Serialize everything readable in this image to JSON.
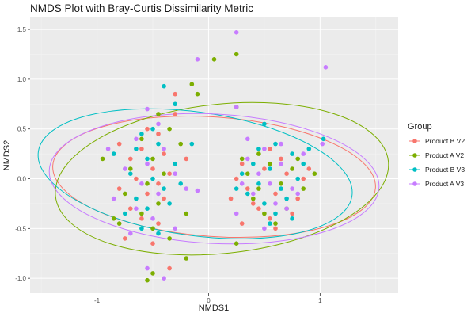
{
  "chart_data": {
    "type": "scatter",
    "title": "NMDS Plot with Bray-Curtis Dissimilarity Metric",
    "xlabel": "NMDS1",
    "ylabel": "NMDS2",
    "xlim": [
      -1.6,
      1.7
    ],
    "ylim": [
      -1.15,
      1.62
    ],
    "x_ticks": [
      -1,
      0,
      1
    ],
    "x_tick_labels": [
      "-1",
      "0",
      "1"
    ],
    "y_ticks": [
      -1.0,
      -0.5,
      0.0,
      0.5,
      1.0,
      1.5
    ],
    "y_tick_labels": [
      "-1.0",
      "-0.5",
      "0.0",
      "0.5",
      "1.0",
      "1.5"
    ],
    "grid": true,
    "legend": {
      "title": "Group",
      "position": "right"
    },
    "series": [
      {
        "name": "Product B V2",
        "color": "#F8766D",
        "ellipse": {
          "cx": 0.05,
          "cy": 0.02,
          "rx": 1.45,
          "ry": 0.6,
          "angle": -4
        },
        "points": [
          [
            -0.3,
            0.85
          ],
          [
            -0.55,
            0.5
          ],
          [
            -0.45,
            0.45
          ],
          [
            -0.8,
            0.35
          ],
          [
            -0.6,
            0.3
          ],
          [
            -0.4,
            0.25
          ],
          [
            -0.7,
            0.2
          ],
          [
            -0.5,
            0.1
          ],
          [
            -0.35,
            0.05
          ],
          [
            -0.65,
            0.0
          ],
          [
            -0.45,
            -0.05
          ],
          [
            -0.8,
            -0.1
          ],
          [
            -0.55,
            -0.15
          ],
          [
            -0.4,
            -0.2
          ],
          [
            -0.7,
            -0.3
          ],
          [
            -0.6,
            -0.4
          ],
          [
            -0.45,
            -0.45
          ],
          [
            -0.75,
            -0.6
          ],
          [
            -0.5,
            -0.65
          ],
          [
            -0.35,
            -0.9
          ],
          [
            -0.3,
            0.65
          ],
          [
            -0.2,
            0.2
          ],
          [
            0.25,
            0.0
          ],
          [
            0.35,
            -0.1
          ],
          [
            0.5,
            0.1
          ],
          [
            0.6,
            -0.15
          ],
          [
            0.7,
            0.05
          ],
          [
            0.8,
            -0.2
          ],
          [
            0.45,
            -0.3
          ],
          [
            0.55,
            -0.4
          ],
          [
            0.3,
            0.15
          ],
          [
            0.65,
            0.2
          ],
          [
            0.4,
            -0.25
          ],
          [
            0.75,
            -0.35
          ],
          [
            0.9,
            0.1
          ],
          [
            0.2,
            -0.2
          ],
          [
            0.55,
            0.3
          ],
          [
            0.85,
            0.0
          ],
          [
            0.3,
            -0.45
          ],
          [
            0.6,
            -0.5
          ]
        ]
      },
      {
        "name": "Product A V2",
        "color": "#7CAE00",
        "ellipse": {
          "cx": 0.12,
          "cy": 0.0,
          "rx": 1.5,
          "ry": 0.75,
          "angle": 6
        },
        "points": [
          [
            0.05,
            1.2
          ],
          [
            0.25,
            1.25
          ],
          [
            -0.15,
            0.95
          ],
          [
            -0.1,
            0.85
          ],
          [
            0.25,
            0.72
          ],
          [
            -0.45,
            0.65
          ],
          [
            -0.35,
            0.5
          ],
          [
            -0.6,
            0.4
          ],
          [
            -0.25,
            0.35
          ],
          [
            -0.5,
            0.2
          ],
          [
            -0.7,
            0.1
          ],
          [
            -0.4,
            0.05
          ],
          [
            -0.55,
            -0.05
          ],
          [
            -0.75,
            -0.15
          ],
          [
            -0.45,
            -0.25
          ],
          [
            -0.6,
            -0.35
          ],
          [
            -0.8,
            -0.45
          ],
          [
            -0.5,
            -0.5
          ],
          [
            -0.35,
            -0.6
          ],
          [
            -0.55,
            -1.02
          ],
          [
            -0.5,
            -0.95
          ],
          [
            -0.2,
            -0.8
          ],
          [
            0.25,
            -0.65
          ],
          [
            0.35,
            0.05
          ],
          [
            0.45,
            -0.1
          ],
          [
            0.55,
            0.15
          ],
          [
            0.65,
            -0.05
          ],
          [
            0.75,
            0.1
          ],
          [
            0.85,
            -0.1
          ],
          [
            0.4,
            -0.2
          ],
          [
            0.5,
            -0.35
          ],
          [
            0.7,
            -0.3
          ],
          [
            0.6,
            -0.45
          ],
          [
            0.3,
            0.2
          ],
          [
            0.8,
            0.2
          ],
          [
            0.95,
            0.05
          ],
          [
            0.45,
            0.25
          ],
          [
            -0.95,
            0.2
          ],
          [
            -0.85,
            -0.4
          ],
          [
            -0.2,
            -0.35
          ]
        ]
      },
      {
        "name": "Product B V3",
        "color": "#00BFC4",
        "ellipse": {
          "cx": -0.12,
          "cy": 0.05,
          "rx": 1.42,
          "ry": 0.62,
          "angle": -8
        },
        "points": [
          [
            -0.4,
            0.93
          ],
          [
            -0.3,
            0.75
          ],
          [
            -0.5,
            0.5
          ],
          [
            -0.6,
            0.45
          ],
          [
            -0.45,
            0.35
          ],
          [
            -0.65,
            0.3
          ],
          [
            -0.55,
            0.2
          ],
          [
            -0.3,
            0.15
          ],
          [
            -0.15,
            0.35
          ],
          [
            -0.7,
            0.05
          ],
          [
            -0.5,
            0.0
          ],
          [
            -0.4,
            -0.1
          ],
          [
            -0.65,
            -0.2
          ],
          [
            -0.55,
            -0.3
          ],
          [
            -0.75,
            -0.35
          ],
          [
            -0.35,
            -0.25
          ],
          [
            -0.6,
            -0.5
          ],
          [
            -0.45,
            -0.55
          ],
          [
            0.5,
            0.55
          ],
          [
            0.6,
            0.35
          ],
          [
            0.75,
            0.25
          ],
          [
            0.3,
            0.05
          ],
          [
            0.45,
            -0.05
          ],
          [
            0.55,
            0.1
          ],
          [
            0.65,
            -0.1
          ],
          [
            0.8,
            0.0
          ],
          [
            0.35,
            -0.15
          ],
          [
            0.5,
            -0.25
          ],
          [
            0.7,
            -0.2
          ],
          [
            0.6,
            -0.35
          ],
          [
            0.4,
            0.15
          ],
          [
            0.85,
            0.15
          ],
          [
            0.25,
            -0.1
          ],
          [
            0.55,
            -0.45
          ],
          [
            0.75,
            -0.4
          ],
          [
            1.03,
            0.4
          ],
          [
            0.9,
            0.3
          ],
          [
            -0.85,
            0.25
          ],
          [
            -0.25,
            -0.05
          ],
          [
            0.45,
            0.3
          ]
        ]
      },
      {
        "name": "Product A V3",
        "color": "#C77CFF",
        "ellipse": {
          "cx": 0.05,
          "cy": 0.0,
          "rx": 1.48,
          "ry": 0.65,
          "angle": -3
        },
        "points": [
          [
            0.25,
            1.47
          ],
          [
            -0.1,
            1.2
          ],
          [
            1.05,
            1.12
          ],
          [
            0.25,
            0.72
          ],
          [
            -0.55,
            0.7
          ],
          [
            -0.45,
            0.55
          ],
          [
            -0.65,
            0.4
          ],
          [
            -0.4,
            0.3
          ],
          [
            -0.55,
            0.15
          ],
          [
            -0.75,
            0.1
          ],
          [
            -0.3,
            0.05
          ],
          [
            -0.6,
            -0.05
          ],
          [
            -0.45,
            -0.15
          ],
          [
            -0.85,
            -0.2
          ],
          [
            -0.2,
            -0.1
          ],
          [
            -0.65,
            -0.3
          ],
          [
            -0.5,
            -0.4
          ],
          [
            -0.7,
            -0.55
          ],
          [
            -0.55,
            -0.9
          ],
          [
            -0.4,
            -1.0
          ],
          [
            0.35,
            0.2
          ],
          [
            0.45,
            0.05
          ],
          [
            0.55,
            -0.05
          ],
          [
            0.65,
            0.15
          ],
          [
            0.75,
            -0.1
          ],
          [
            0.4,
            -0.15
          ],
          [
            0.5,
            0.3
          ],
          [
            0.6,
            -0.25
          ],
          [
            0.7,
            -0.3
          ],
          [
            0.3,
            -0.05
          ],
          [
            0.85,
            0.25
          ],
          [
            0.25,
            -0.35
          ],
          [
            0.5,
            -0.5
          ],
          [
            0.8,
            -0.15
          ],
          [
            0.65,
            0.35
          ],
          [
            1.02,
            0.35
          ],
          [
            -0.9,
            0.3
          ],
          [
            -0.1,
            -0.12
          ],
          [
            0.35,
            0.4
          ],
          [
            -0.3,
            -0.5
          ]
        ]
      }
    ]
  }
}
